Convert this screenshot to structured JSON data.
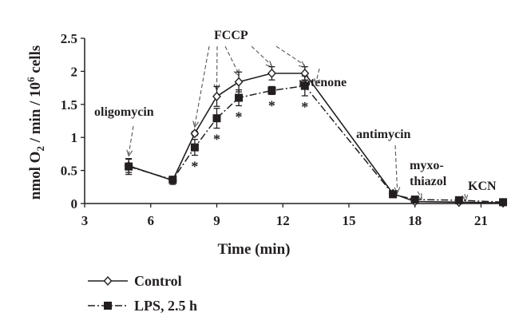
{
  "chart_data": {
    "type": "line",
    "xlabel": "Time (min)",
    "ylabel_parts": [
      "nmol O",
      "2",
      " / min / 10",
      "6",
      " cells"
    ],
    "xlim": [
      3,
      22
    ],
    "ylim": [
      0,
      2.5
    ],
    "xticks": [
      3,
      6,
      9,
      12,
      15,
      18,
      21
    ],
    "yticks": [
      0,
      0.5,
      1,
      1.5,
      2,
      2.5
    ],
    "ytick_labels": [
      "0",
      "0.5",
      "1",
      "1.5",
      "2",
      "2.5"
    ],
    "series": [
      {
        "name": "Control",
        "marker": "diamond",
        "line": "solid",
        "points": [
          {
            "x": 5,
            "y": 0.57,
            "err": 0.1
          },
          {
            "x": 7,
            "y": 0.35,
            "err": 0.06
          },
          {
            "x": 8,
            "y": 1.06,
            "err": 0.03
          },
          {
            "x": 9,
            "y": 1.62,
            "err": 0.15
          },
          {
            "x": 10,
            "y": 1.84,
            "err": 0.15
          },
          {
            "x": 11.5,
            "y": 1.97,
            "err": 0.1
          },
          {
            "x": 13,
            "y": 1.97,
            "err": 0.1
          },
          {
            "x": 17,
            "y": 0.15,
            "err": 0.02
          },
          {
            "x": 18,
            "y": 0.03,
            "err": 0.01
          },
          {
            "x": 20,
            "y": 0.02,
            "err": 0.01
          },
          {
            "x": 22,
            "y": 0.01,
            "err": 0.01
          }
        ]
      },
      {
        "name": "LPS, 2.5 h",
        "marker": "square",
        "line": "dashdot",
        "points": [
          {
            "x": 5,
            "y": 0.56,
            "err": 0.12
          },
          {
            "x": 7,
            "y": 0.36,
            "err": 0.04
          },
          {
            "x": 8,
            "y": 0.85,
            "err": 0.12
          },
          {
            "x": 9,
            "y": 1.29,
            "err": 0.15
          },
          {
            "x": 10,
            "y": 1.6,
            "err": 0.12
          },
          {
            "x": 11.5,
            "y": 1.71,
            "err": 0.06
          },
          {
            "x": 13,
            "y": 1.78,
            "err": 0.15
          },
          {
            "x": 17,
            "y": 0.14,
            "err": 0.02
          },
          {
            "x": 18,
            "y": 0.06,
            "err": 0.01
          },
          {
            "x": 20,
            "y": 0.05,
            "err": 0.01
          },
          {
            "x": 22,
            "y": 0.02,
            "err": 0.01
          }
        ]
      }
    ],
    "significance_marks": [
      {
        "x": 8,
        "label": "*"
      },
      {
        "x": 9,
        "label": "*"
      },
      {
        "x": 10,
        "label": "*"
      },
      {
        "x": 11.5,
        "label": "*"
      },
      {
        "x": 13,
        "label": "*"
      }
    ],
    "annotations": [
      {
        "label": "oligomycin",
        "arrow_x": [
          5
        ],
        "arrow_y": 0.7
      },
      {
        "label": "FCCP",
        "arrow_x": [
          8,
          9,
          10,
          11.5,
          13
        ],
        "arrow_y": 2.0
      },
      {
        "label": "rotenone",
        "arrow_x": [
          13.5
        ],
        "arrow_y": 1.8
      },
      {
        "label": "antimycin",
        "arrow_x": [
          17.2
        ],
        "arrow_y": 0.16
      },
      {
        "label": "myxo-",
        "arrow_x": [],
        "arrow_y": null
      },
      {
        "label": "thiazol",
        "arrow_x": [
          18.3
        ],
        "arrow_y": 0.06
      },
      {
        "label": "KCN",
        "arrow_x": [
          20.3
        ],
        "arrow_y": 0.04
      }
    ],
    "legend_position": "bottom-left",
    "grid": false
  }
}
